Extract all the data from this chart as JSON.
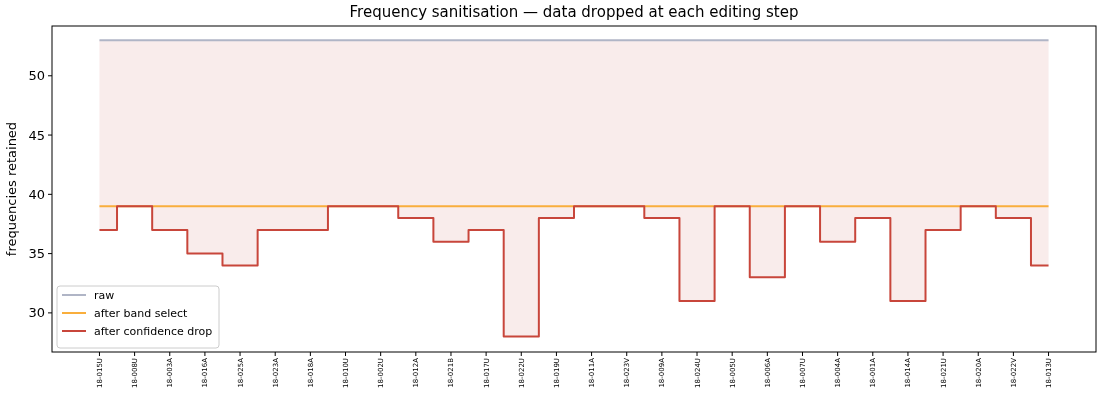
{
  "chart_data": {
    "type": "step",
    "title": "Frequency sanitisation — data dropped at each editing step",
    "ylabel": "frequencies retained",
    "categories": [
      "18-015U",
      "18-008U",
      "18-003A",
      "18-016A",
      "18-025A",
      "18-023A",
      "18-018A",
      "18-010U",
      "18-002U",
      "18-012A",
      "18-021B",
      "18-017U",
      "18-022U",
      "18-019U",
      "18-011A",
      "18-023V",
      "18-009A",
      "18-024U",
      "18-005U",
      "18-006A",
      "18-007U",
      "18-004A",
      "18-001A",
      "18-014A",
      "18-021U",
      "18-020A",
      "18-022V",
      "18-013U"
    ],
    "series": [
      {
        "name": "raw",
        "color": "#b0b5c6",
        "values": [
          53,
          53,
          53,
          53,
          53,
          53,
          53,
          53,
          53,
          53,
          53,
          53,
          53,
          53,
          53,
          53,
          53,
          53,
          53,
          53,
          53,
          53,
          53,
          53,
          53,
          53,
          53,
          53
        ],
        "lower": [
          37,
          39,
          37,
          35,
          34,
          37,
          37,
          39,
          39,
          38,
          36,
          37,
          28,
          38,
          39,
          39,
          38,
          31,
          39,
          33,
          39,
          36,
          38,
          31,
          37,
          39,
          38,
          34
        ],
        "upper": [
          53,
          53,
          53,
          53,
          53,
          53,
          53,
          53,
          53,
          53,
          53,
          53,
          53,
          53,
          53,
          53,
          53,
          53,
          53,
          53,
          53,
          53,
          53,
          53,
          53,
          53,
          53,
          53
        ]
      },
      {
        "name": "after band select",
        "color": "#f9ae3c",
        "values": [
          39,
          39,
          39,
          39,
          39,
          39,
          39,
          39,
          39,
          39,
          39,
          39,
          39,
          39,
          39,
          39,
          39,
          39,
          39,
          39,
          39,
          39,
          39,
          39,
          39,
          39,
          39,
          39
        ]
      },
      {
        "name": "after confidence drop",
        "color": "#c8463b",
        "values": [
          37,
          39,
          37,
          35,
          34,
          37,
          37,
          39,
          39,
          38,
          36,
          37,
          28,
          38,
          39,
          39,
          38,
          31,
          39,
          33,
          39,
          36,
          38,
          31,
          37,
          39,
          38,
          34
        ]
      }
    ],
    "ylim": [
      26.7,
      54.2
    ],
    "yticks": [
      30,
      35,
      40,
      45,
      50
    ],
    "grid": false,
    "legend": "bottom left"
  }
}
